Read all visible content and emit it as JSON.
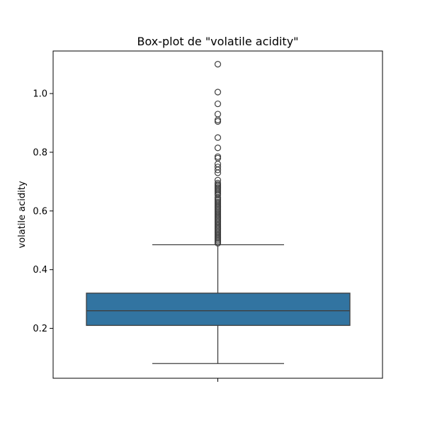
{
  "chart_data": {
    "type": "box",
    "title": "Box-plot de \"volatile acidity\"",
    "xlabel": "",
    "ylabel": "volatile acidity",
    "ylim": [
      0.03,
      1.145
    ],
    "yticks": [
      0.2,
      0.4,
      0.6,
      0.8,
      1.0
    ],
    "ytick_labels": [
      "0.2",
      "0.4",
      "0.6",
      "0.8",
      "1.0"
    ],
    "grid": false,
    "box_color": "#3274a1",
    "series": [
      {
        "name": "volatile acidity",
        "whisker_low": 0.08,
        "q1": 0.21,
        "median": 0.26,
        "q3": 0.32,
        "whisker_high": 0.485,
        "outliers": [
          1.1,
          1.005,
          0.965,
          0.93,
          0.91,
          0.905,
          0.85,
          0.815,
          0.785,
          0.78,
          0.76,
          0.75,
          0.74,
          0.73,
          0.705,
          0.695,
          0.69,
          0.685,
          0.68,
          0.675,
          0.67,
          0.665,
          0.66,
          0.655,
          0.645,
          0.64,
          0.635,
          0.63,
          0.625,
          0.62,
          0.615,
          0.61,
          0.605,
          0.6,
          0.595,
          0.59,
          0.585,
          0.58,
          0.575,
          0.57,
          0.565,
          0.56,
          0.555,
          0.55,
          0.545,
          0.54,
          0.535,
          0.53,
          0.525,
          0.52,
          0.515,
          0.51,
          0.505,
          0.5,
          0.495,
          0.49
        ]
      }
    ]
  }
}
